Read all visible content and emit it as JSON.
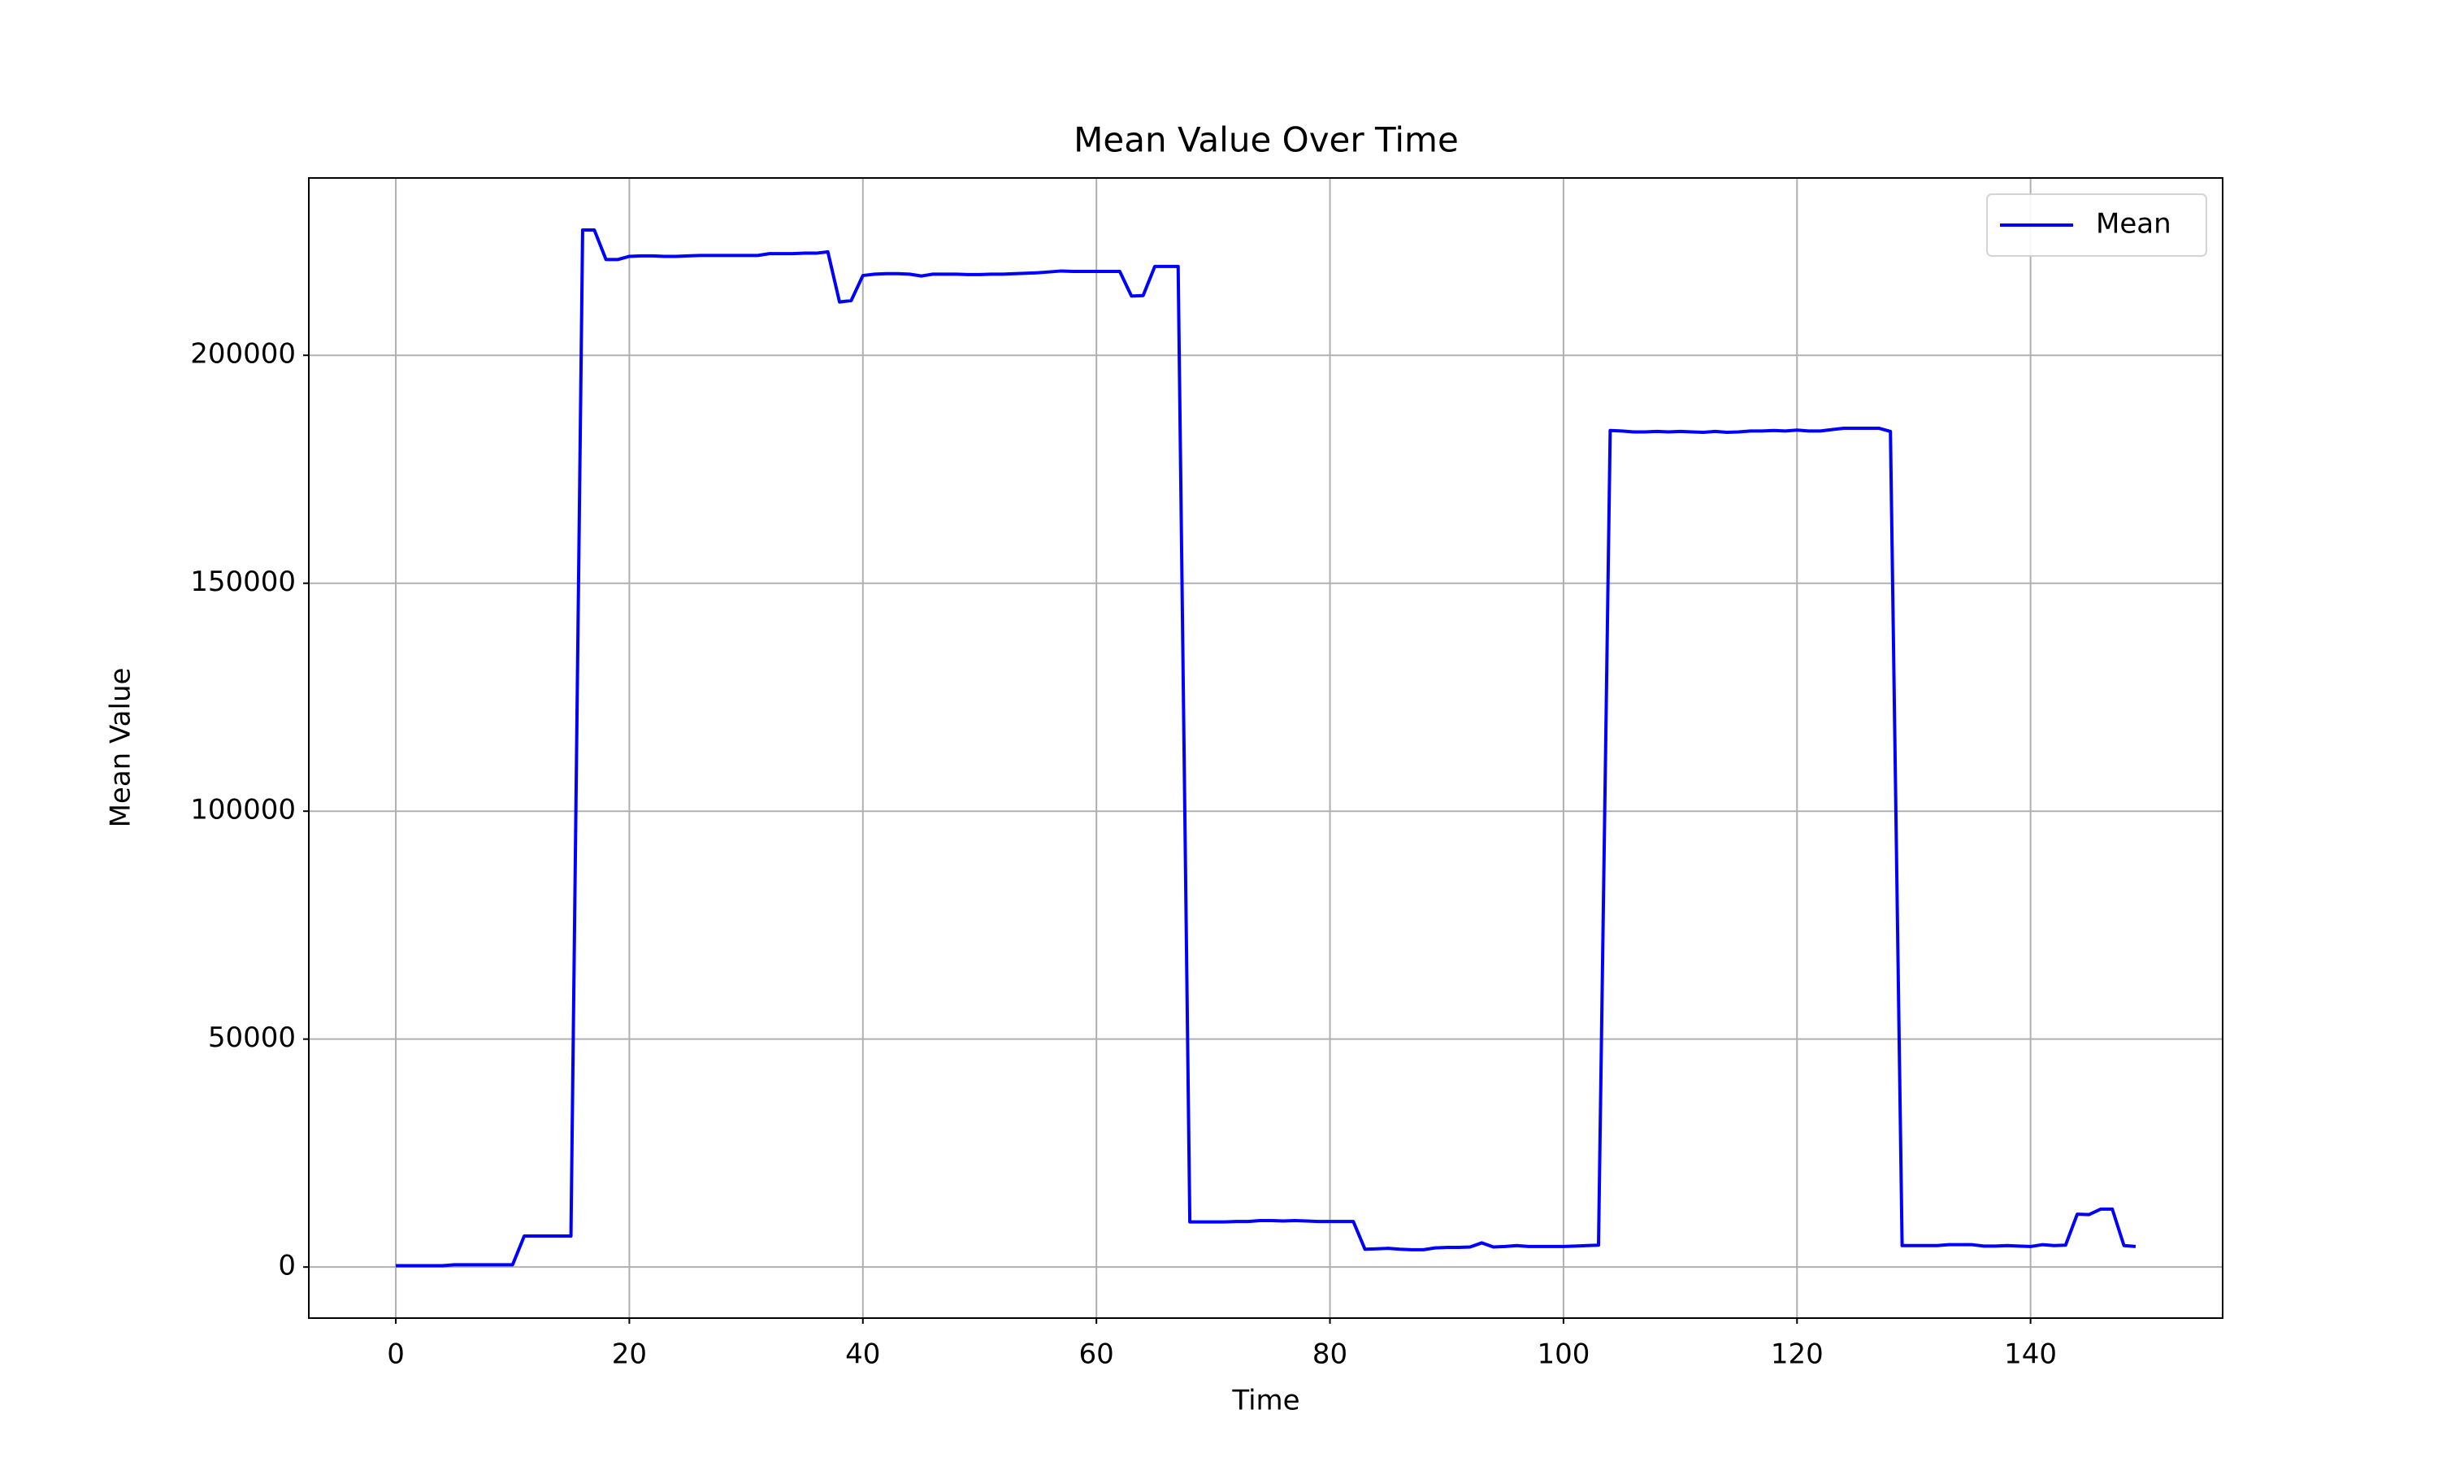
{
  "chart_data": {
    "type": "line",
    "title": "Mean Value Over Time",
    "xlabel": "Time",
    "ylabel": "Mean Value",
    "x": [
      0,
      1,
      2,
      3,
      4,
      5,
      6,
      7,
      8,
      9,
      10,
      11,
      12,
      13,
      14,
      15,
      16,
      17,
      18,
      19,
      20,
      21,
      22,
      23,
      24,
      25,
      26,
      27,
      28,
      29,
      30,
      31,
      32,
      33,
      34,
      35,
      36,
      37,
      38,
      39,
      40,
      41,
      42,
      43,
      44,
      45,
      46,
      47,
      48,
      49,
      50,
      51,
      52,
      53,
      54,
      55,
      56,
      57,
      58,
      59,
      60,
      61,
      62,
      63,
      64,
      65,
      66,
      67,
      68,
      69,
      70,
      71,
      72,
      73,
      74,
      75,
      76,
      77,
      78,
      79,
      80,
      81,
      82,
      83,
      84,
      85,
      86,
      87,
      88,
      89,
      90,
      91,
      92,
      93,
      94,
      95,
      96,
      97,
      98,
      99,
      100,
      101,
      102,
      103,
      104,
      105,
      106,
      107,
      108,
      109,
      110,
      111,
      112,
      113,
      114,
      115,
      116,
      117,
      118,
      119,
      120,
      121,
      122,
      123,
      124,
      125,
      126,
      127,
      128,
      129,
      130,
      131,
      132,
      133,
      134,
      135,
      136,
      137,
      138,
      139,
      140,
      141,
      142,
      143,
      144,
      145,
      146,
      147,
      148,
      149
    ],
    "series": [
      {
        "name": "Mean",
        "color": "#0000ff",
        "values": [
          300,
          300,
          300,
          300,
          300,
          500,
          500,
          500,
          500,
          500,
          500,
          6800,
          6800,
          6800,
          6800,
          6800,
          227500,
          227500,
          221000,
          221000,
          221700,
          221800,
          221800,
          221700,
          221700,
          221800,
          221900,
          221900,
          221900,
          221900,
          221900,
          221900,
          222300,
          222300,
          222300,
          222400,
          222400,
          222700,
          211700,
          212000,
          217500,
          217800,
          217900,
          217900,
          217800,
          217400,
          217800,
          217800,
          217800,
          217700,
          217700,
          217800,
          217800,
          217900,
          218000,
          218100,
          218300,
          218500,
          218400,
          218400,
          218400,
          218400,
          218400,
          213000,
          213100,
          219500,
          219500,
          219500,
          9900,
          9900,
          9900,
          9900,
          10000,
          10000,
          10200,
          10200,
          10100,
          10200,
          10100,
          10000,
          10000,
          10000,
          10000,
          3900,
          4000,
          4100,
          3900,
          3800,
          3800,
          4200,
          4300,
          4300,
          4400,
          5300,
          4400,
          4500,
          4700,
          4500,
          4500,
          4500,
          4500,
          4600,
          4700,
          4800,
          183500,
          183400,
          183200,
          183200,
          183300,
          183200,
          183300,
          183200,
          183100,
          183300,
          183100,
          183200,
          183400,
          183400,
          183500,
          183400,
          183600,
          183400,
          183400,
          183700,
          184000,
          184000,
          184000,
          184000,
          183300,
          4700,
          4700,
          4700,
          4700,
          4900,
          4900,
          4900,
          4600,
          4600,
          4700,
          4600,
          4500,
          4900,
          4700,
          4800,
          11600,
          11500,
          12700,
          12700,
          4700,
          4500
        ]
      }
    ],
    "xlim": [
      -7.45,
      156.45
    ],
    "ylim": [
      -11200,
      238900
    ],
    "xticks": [
      0,
      20,
      40,
      60,
      80,
      100,
      120,
      140
    ],
    "yticks": [
      0,
      50000,
      100000,
      150000,
      200000
    ],
    "grid": true,
    "legend": "upper right"
  }
}
